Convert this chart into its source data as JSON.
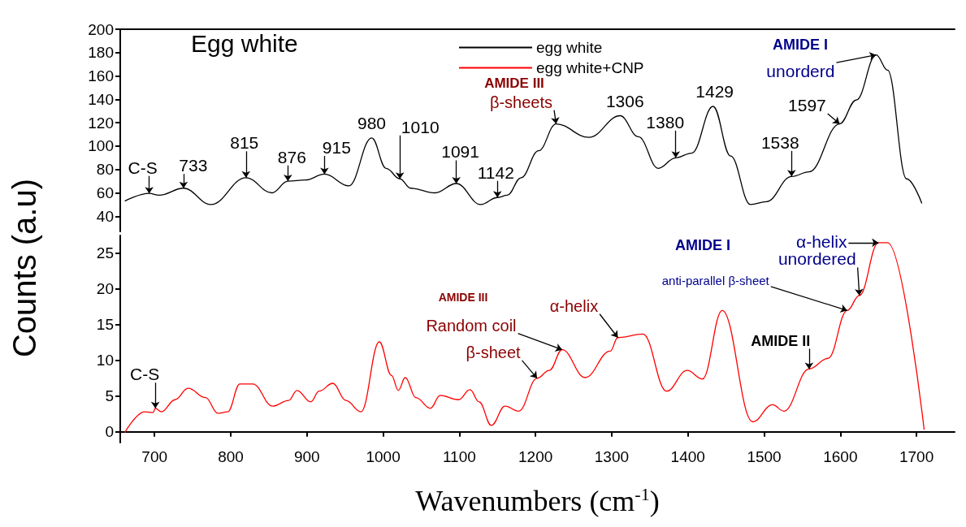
{
  "chart_data": [
    {
      "type": "line",
      "title": "Egg white",
      "xlim": [
        655,
        1750
      ],
      "ylim": [
        27,
        200
      ],
      "yticks": [
        40,
        60,
        80,
        100,
        120,
        140,
        160,
        180,
        200
      ],
      "tick_labels": "y",
      "legend": "top",
      "marker": "none",
      "grid": false,
      "series": [
        {
          "name": "egg white",
          "color": "#000000",
          "x": [
            661,
            693,
            706,
            738,
            774,
            820,
            854,
            875,
            898,
            923,
            955,
            985,
            1004,
            1022,
            1036,
            1068,
            1096,
            1128,
            1150,
            1163,
            1181,
            1204,
            1227,
            1270,
            1311,
            1335,
            1361,
            1384,
            1405,
            1433,
            1456,
            1482,
            1503,
            1536,
            1559,
            1599,
            1621,
            1647,
            1662,
            1687,
            1707
          ],
          "values": [
            53,
            59.5,
            58,
            64,
            50,
            73,
            60,
            70,
            71,
            76,
            66,
            107,
            81,
            72,
            64,
            60,
            68,
            50,
            56,
            58,
            73,
            96,
            119,
            107.5,
            126,
            108,
            81,
            90,
            94,
            134,
            91.5,
            50,
            52.5,
            74,
            78,
            119,
            139.5,
            178,
            165,
            72,
            51
          ]
        }
      ],
      "annotations": [
        {
          "text": "C-S",
          "x": 693,
          "y": 59.5
        },
        {
          "text": "733",
          "x": 738,
          "y": 64
        },
        {
          "text": "815",
          "x": 820,
          "y": 73
        },
        {
          "text": "876",
          "x": 875,
          "y": 70
        },
        {
          "text": "915",
          "x": 923,
          "y": 76
        },
        {
          "text": "980",
          "x": 985,
          "y": 107
        },
        {
          "text": "1010",
          "x": 1022,
          "y": 72
        },
        {
          "text": "1091",
          "x": 1096,
          "y": 68
        },
        {
          "text": "1142",
          "x": 1150,
          "y": 56
        },
        "AMIDE III",
        {
          "text": "β-sheets",
          "x": 1227,
          "y": 119
        },
        {
          "text": "1306",
          "x": 1311,
          "y": 126
        },
        {
          "text": "1380",
          "x": 1384,
          "y": 90
        },
        {
          "text": "1429",
          "x": 1433,
          "y": 134
        },
        {
          "text": "1538",
          "x": 1536,
          "y": 74
        },
        {
          "text": "1597",
          "x": 1599,
          "y": 119
        },
        "AMIDE I",
        {
          "text": "unorderd",
          "x": 1647,
          "y": 178
        }
      ]
    },
    {
      "type": "line",
      "xlabel": "Wavenumbers (cm$^{-1}$)",
      "ylabel": "Counts (a.u)",
      "xlim": [
        655,
        1750
      ],
      "xticks": [
        700,
        800,
        900,
        1000,
        1100,
        1200,
        1300,
        1400,
        1500,
        1600,
        1700
      ],
      "ylim": [
        -1.5,
        27.5
      ],
      "yticks": [
        0,
        5,
        10,
        15,
        20,
        25
      ],
      "legend": "top",
      "marker": "none",
      "grid": false,
      "series": [
        {
          "name": "egg white+CNP",
          "color": "#ff0000",
          "x": [
            661,
            687,
            698,
            701,
            709,
            727,
            744,
            767,
            783,
            796,
            812,
            829,
            855,
            876,
            887,
            905,
            916,
            934,
            951,
            971,
            995,
            1011,
            1020,
            1029,
            1043,
            1062,
            1075,
            1099,
            1114,
            1126,
            1142,
            1160,
            1178,
            1202,
            1218,
            1235,
            1265,
            1298,
            1308,
            1341,
            1372,
            1399,
            1419,
            1445,
            1485,
            1511,
            1526,
            1559,
            1584,
            1609,
            1625,
            1650,
            1662,
            1710
          ],
          "values": [
            -0.1,
            2.8,
            2.7,
            3.3,
            2.8,
            4.5,
            6.1,
            4.8,
            2.6,
            2.8,
            6.7,
            6.7,
            3.6,
            4.4,
            5.8,
            4.2,
            5.7,
            6.8,
            4.4,
            2.8,
            12.6,
            7.9,
            5.8,
            7.6,
            4.8,
            3.3,
            5.1,
            4.5,
            5.9,
            4.2,
            0.9,
            3.6,
            2.9,
            7.5,
            8.6,
            11.5,
            7.6,
            11.3,
            13.2,
            13.7,
            5.7,
            8.6,
            7.4,
            17.0,
            1.4,
            3.8,
            2.9,
            8.8,
            10.3,
            17.0,
            19.1,
            26.5,
            26.5,
            0.3
          ]
        }
      ],
      "annotations": [
        {
          "text": "C-S",
          "x": 701,
          "y": 3.3
        },
        "AMIDE III",
        {
          "text": "β-sheet",
          "x": 1202,
          "y": 7.5
        },
        {
          "text": "Random coil",
          "x": 1235,
          "y": 11.5
        },
        {
          "text": "α-helix",
          "x": 1308,
          "y": 13.2
        },
        "AMIDE I",
        {
          "text": "anti-parallel β-sheet",
          "x": 1609,
          "y": 17.0
        },
        {
          "text": "unordered",
          "x": 1625,
          "y": 19.1
        },
        {
          "text": "α-helix",
          "x": 1650,
          "y": 26.5
        },
        {
          "text": "AMIDE II",
          "x": 1559,
          "y": 8.8
        }
      ]
    }
  ]
}
